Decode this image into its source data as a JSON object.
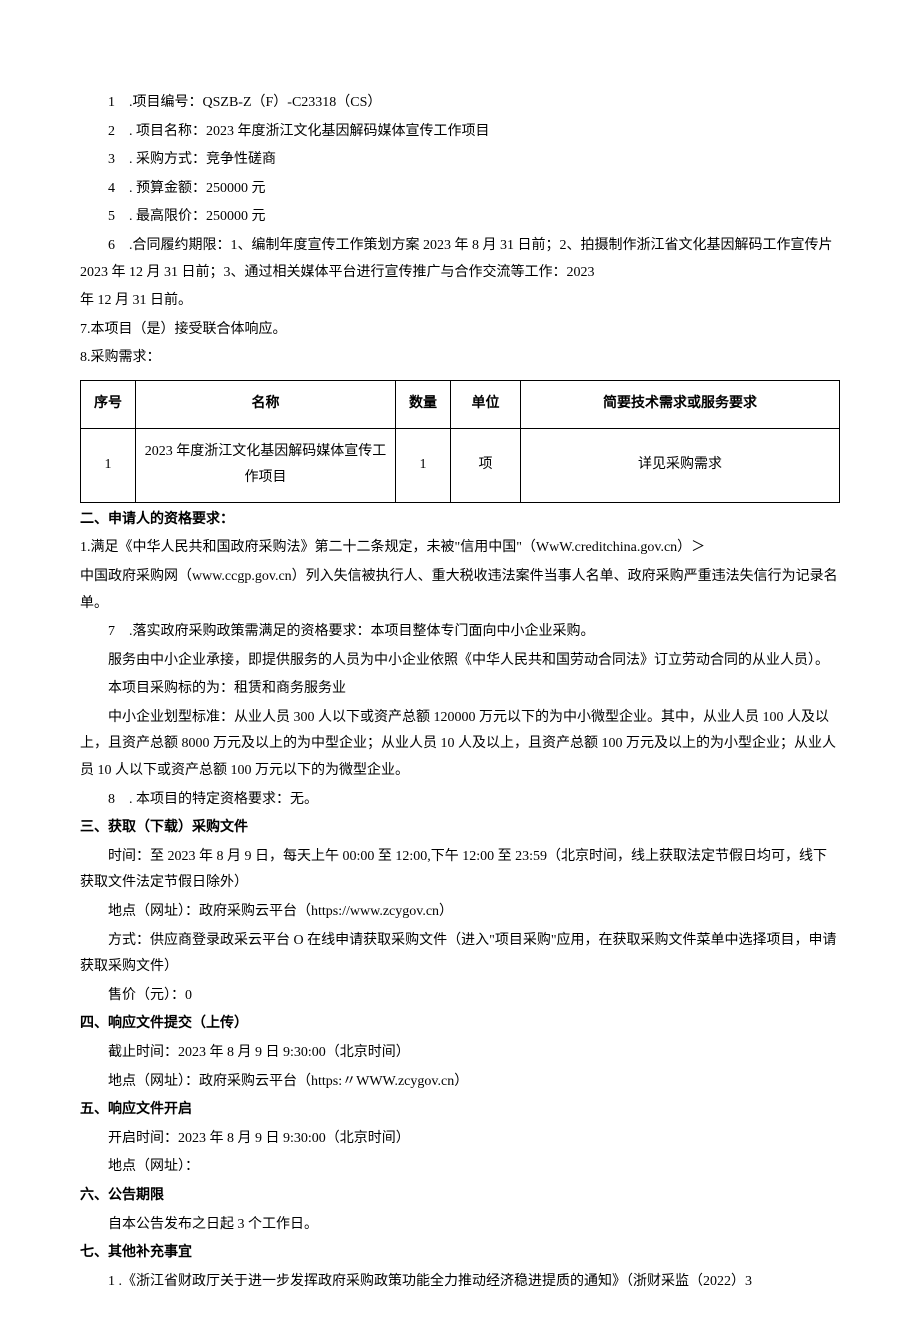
{
  "items": [
    {
      "n": "1",
      "label": ".项目编号：",
      "value": "QSZB-Z（F）-C23318（CS）"
    },
    {
      "n": "2",
      "label": ". 项目名称：",
      "value": "2023 年度浙江文化基因解码媒体宣传工作项目"
    },
    {
      "n": "3",
      "label": ". 采购方式：",
      "value": "竞争性磋商"
    },
    {
      "n": "4",
      "label": ". 预算金额：",
      "value": "250000 元"
    },
    {
      "n": "5",
      "label": ". 最高限价：",
      "value": "250000 元"
    }
  ],
  "item6": "6　.合同履约期限：1、编制年度宣传工作策划方案 2023 年 8 月 31 日前；2、拍摄制作浙江省文化基因解码工作宣传片 2023 年 12 月 31 日前；3、通过相关媒体平台进行宣传推广与合作交流等工作：2023",
  "item6b": "年 12 月 31 日前。",
  "item7": "7.本项目（是）接受联合体响应。",
  "item8": "8.采购需求：",
  "table": {
    "headers": {
      "seq": "序号",
      "name": "名称",
      "qty": "数量",
      "unit": "单位",
      "req": "简要技术需求或服务要求"
    },
    "rows": [
      {
        "seq": "1",
        "name": "2023 年度浙江文化基因解码媒体宣传工作项目",
        "qty": "1",
        "unit": "项",
        "req": "详见采购需求"
      }
    ]
  },
  "s2_title": "二、申请人的资格要求：",
  "s2_1a": "1.满足《中华人民共和国政府采购法》第二十二条规定，未被\"信用中国\"（WwW.creditchina.gov.cn）＞",
  "s2_1b": "中国政府采购网（www.ccgp.gov.cn）列入失信被执行人、重大税收违法案件当事人名单、政府采购严重违法失信行为记录名单。",
  "s2_7": "7　.落实政府采购政策需满足的资格要求：本项目整体专门面向中小企业采购。",
  "s2_p2": "服务由中小企业承接，即提供服务的人员为中小企业依照《中华人民共和国劳动合同法》订立劳动合同的从业人员）。",
  "s2_p3": "本项目采购标的为：租赁和商务服务业",
  "s2_p4": "中小企业划型标准：从业人员 300 人以下或资产总额 120000 万元以下的为中小微型企业。其中，从业人员 100 人及以上，且资产总额 8000 万元及以上的为中型企业；从业人员 10 人及以上，且资产总额 100 万元及以上的为小型企业；从业人员 10 人以下或资产总额 100 万元以下的为微型企业。",
  "s2_8": "8　. 本项目的特定资格要求：无。",
  "s3_title": "三、获取（下载）采购文件",
  "s3_p1": "时间：至 2023 年 8 月 9 日，每天上午 00:00 至 12:00,下午 12:00 至 23:59（北京时间，线上获取法定节假日均可，线下获取文件法定节假日除外）",
  "s3_p2": "地点（网址）：政府采购云平台（https://www.zcygov.cn）",
  "s3_p3": "方式：供应商登录政采云平台 O 在线申请获取采购文件（进入\"项目采购\"应用，在获取采购文件菜单中选择项目，申请获取采购文件）",
  "s3_p4": "售价（元）：0",
  "s4_title": "四、响应文件提交（上传）",
  "s4_p1": "截止时间：2023 年 8 月 9 日 9:30:00（北京时间）",
  "s4_p2": "地点（网址）：政府采购云平台（https:〃WWW.zcygov.cn）",
  "s5_title": "五、响应文件开启",
  "s5_p1": "开启时间：2023 年 8 月 9 日 9:30:00（北京时间）",
  "s5_p2": "地点（网址）：",
  "s6_title": "六、公告期限",
  "s6_p1": "自本公告发布之日起 3 个工作日。",
  "s7_title": "七、其他补充事宜",
  "s7_p1": "1 .《浙江省财政厅关于进一步发挥政府采购政策功能全力推动经济稳进提质的通知》（浙财采监（2022）3"
}
